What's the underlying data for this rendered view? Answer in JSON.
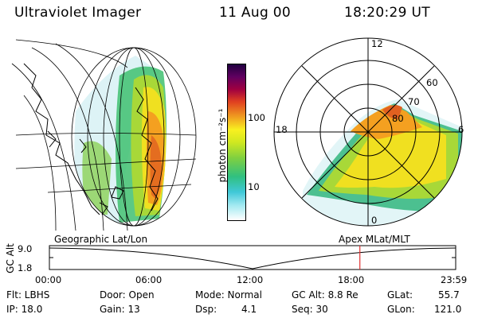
{
  "header": {
    "instrument": "Ultraviolet Imager",
    "date": "11 Aug 00",
    "time": "18:20:29 UT"
  },
  "colorbar": {
    "units": "photon cm⁻²s⁻¹",
    "ticks": [
      "100",
      "10"
    ],
    "colors": [
      "#ffffff",
      "#9ee8f0",
      "#40c8d8",
      "#30c080",
      "#80d040",
      "#d0e820",
      "#f8f020",
      "#f0a020",
      "#e04020",
      "#a00040",
      "#600060",
      "#200040"
    ]
  },
  "polar_plot": {
    "mlt_labels": [
      "12",
      "18",
      "6",
      "0"
    ],
    "lat_labels": [
      "60",
      "70",
      "80"
    ]
  },
  "timeline": {
    "left_title": "Geographic Lat/Lon",
    "right_title": "Apex MLat/MLT",
    "axis_label": "GC Alt",
    "y_ticks": [
      "9.0",
      "1.8"
    ],
    "x_ticks": [
      "00:00",
      "06:00",
      "12:00",
      "18:00",
      "23:59"
    ],
    "current_time_marker_hours": 18.34,
    "marker_color": "#e03030"
  },
  "status": {
    "filter": "Flt: LBHS",
    "ip": "IP: 18.0",
    "door": "Door: Open",
    "gain": "Gain: 13",
    "mode": "Mode: Normal",
    "dsp_label": "Dsp:",
    "dsp_value": "4.1",
    "gc_alt": "GC Alt: 8.8 Re",
    "seq": "Seq: 30",
    "glat_label": "GLat:",
    "glat_value": "55.7",
    "glon_label": "GLon:",
    "glon_value": "121.0"
  }
}
